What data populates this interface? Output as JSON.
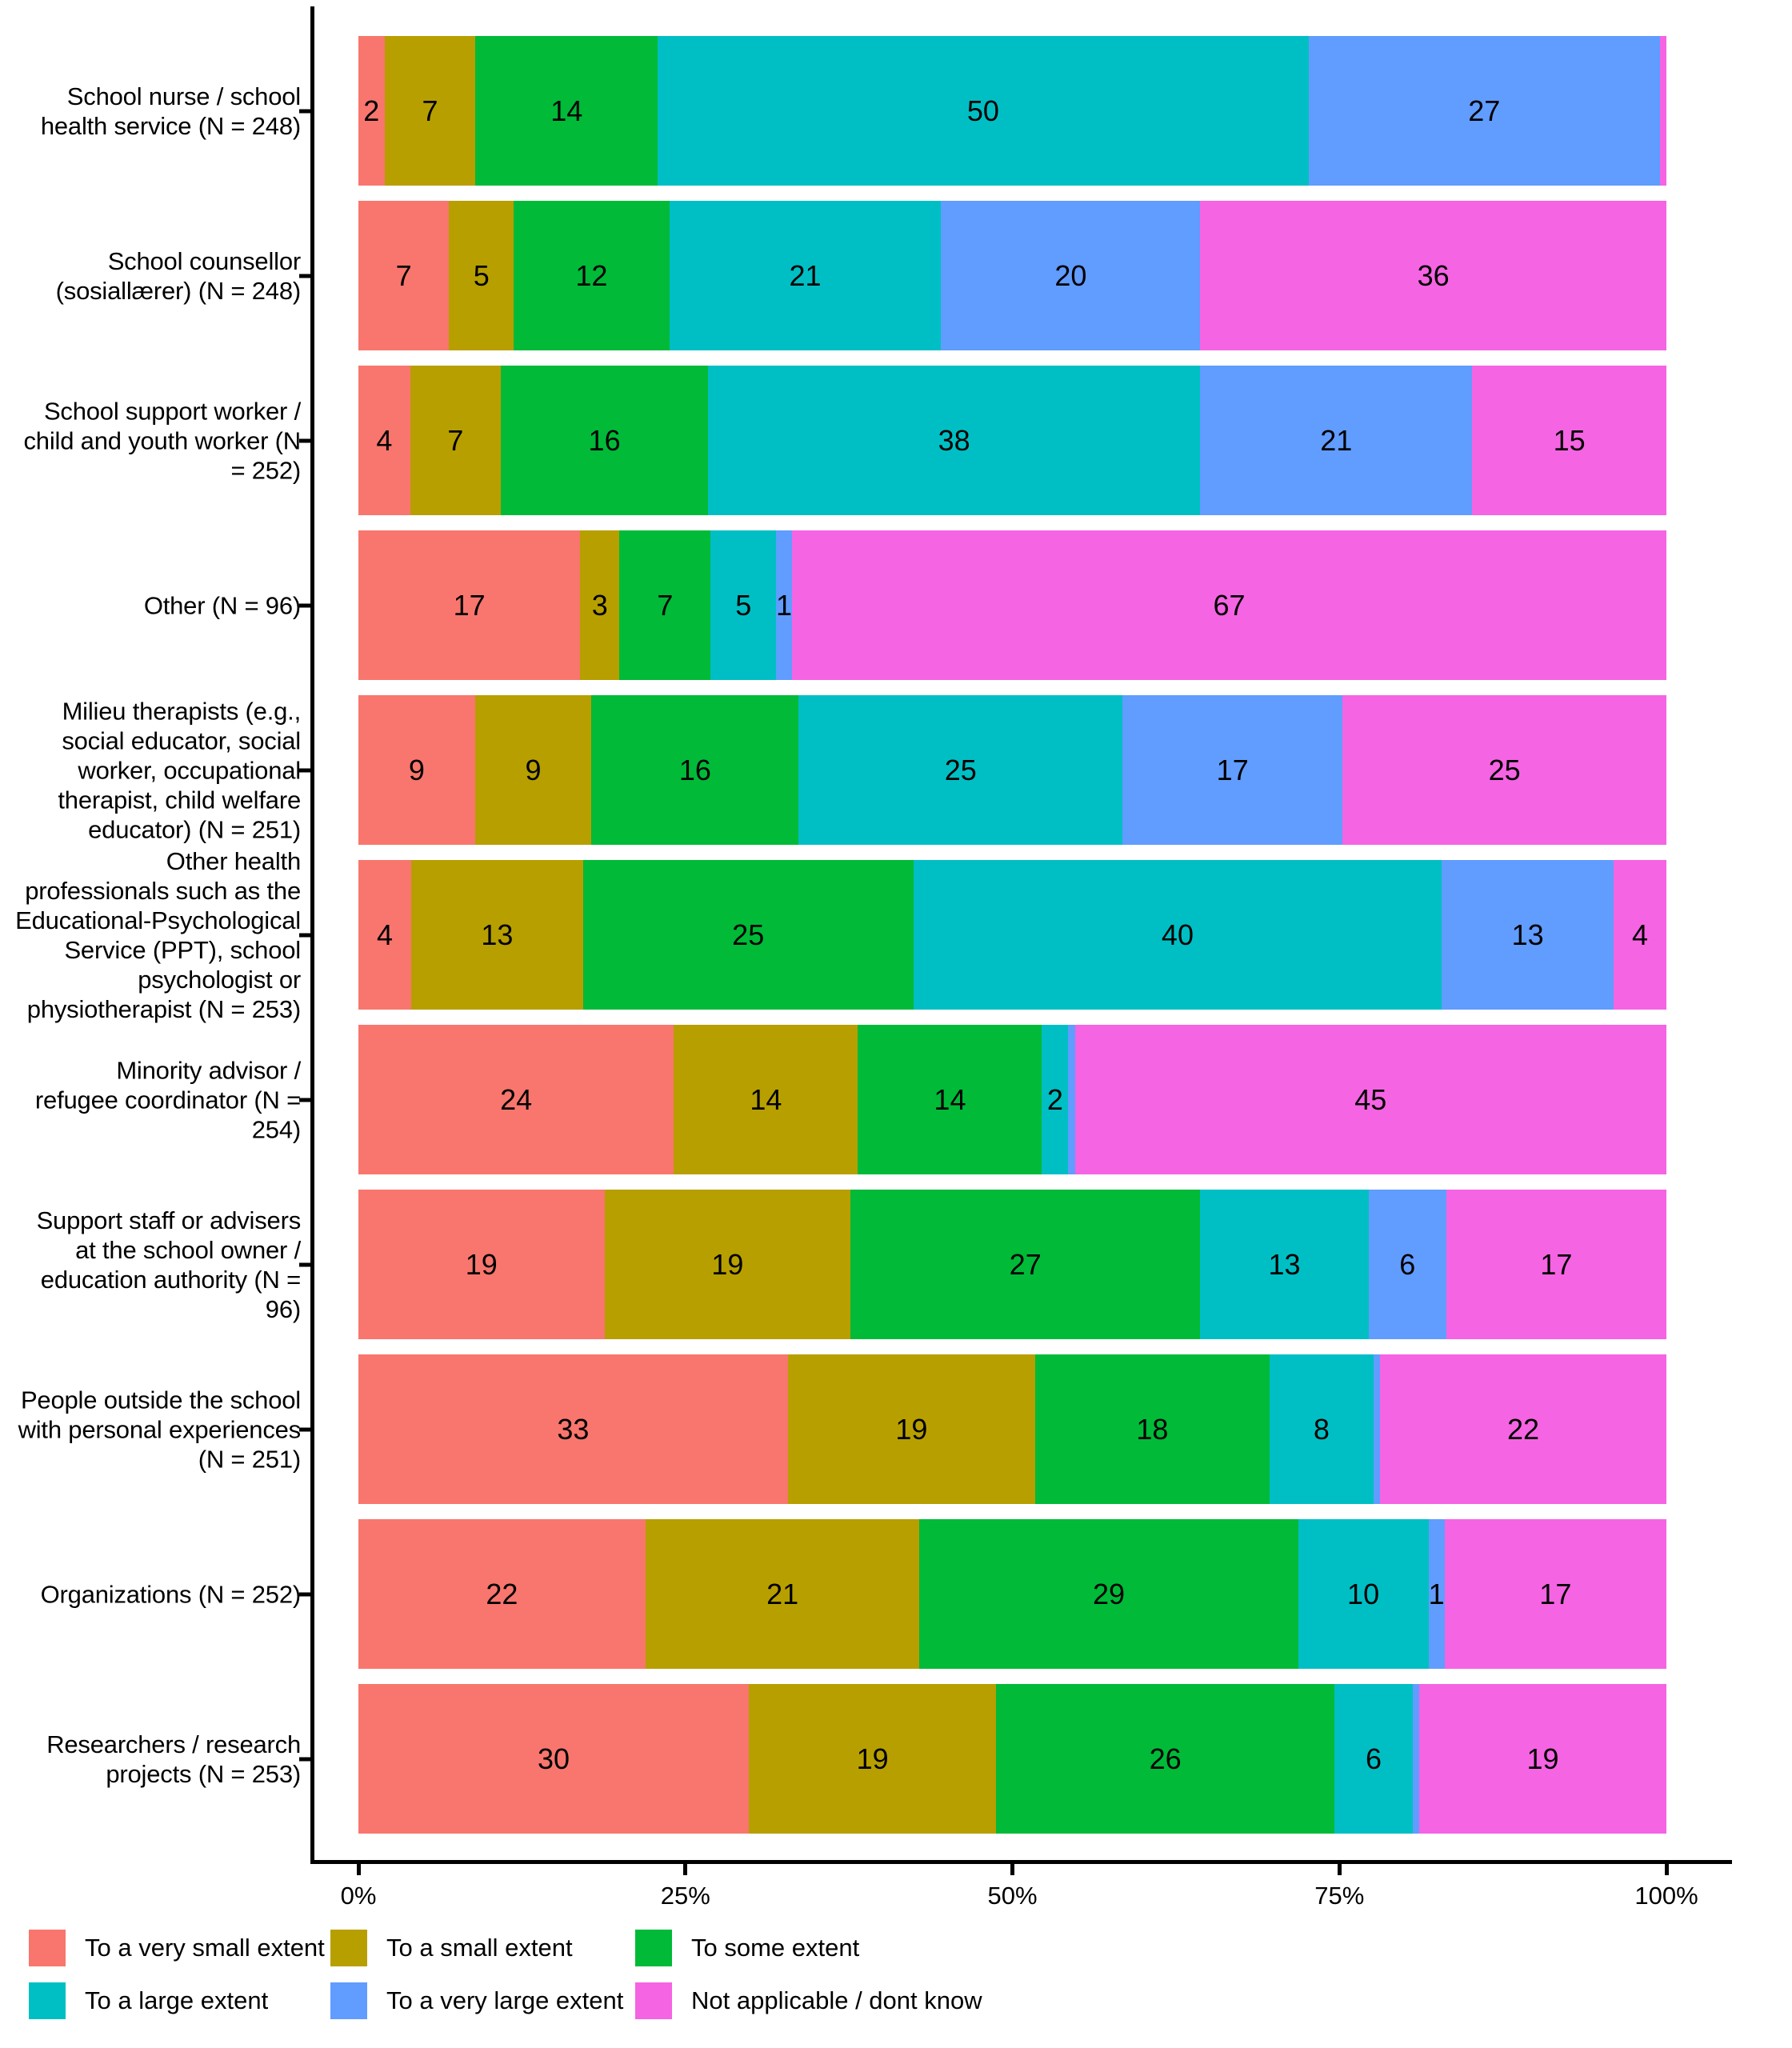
{
  "chart_data": {
    "type": "bar",
    "orientation": "horizontal",
    "stacked": true,
    "units": "percent of responses",
    "title": "",
    "xlabel": "",
    "ylabel": "",
    "xlim": [
      0,
      100
    ],
    "grid": false,
    "x_axis": {
      "ticks": [
        {
          "value": 0,
          "label": "0%"
        },
        {
          "value": 25,
          "label": "25%"
        },
        {
          "value": 50,
          "label": "50%"
        },
        {
          "value": 75,
          "label": "75%"
        },
        {
          "value": 100,
          "label": "100%"
        }
      ]
    },
    "legend": {
      "position": "bottom-left",
      "items": [
        {
          "label": "To a very small extent",
          "color": "#F8766D"
        },
        {
          "label": "To a small extent",
          "color": "#B79F00"
        },
        {
          "label": "To some extent",
          "color": "#00BA38"
        },
        {
          "label": "To a large extent",
          "color": "#00BFC4"
        },
        {
          "label": "To a very large extent",
          "color": "#619CFF"
        },
        {
          "label": "Not applicable / dont know",
          "color": "#F564E3"
        }
      ]
    },
    "rows": [
      {
        "category": "School nurse / school\nhealth service (N = 248)",
        "values": [
          2,
          7,
          14,
          50,
          27,
          0.5
        ],
        "value_labels": [
          "2",
          "7",
          "14",
          "50",
          "27",
          ""
        ]
      },
      {
        "category": "School counsellor\n(sosiallærer) (N = 248)",
        "values": [
          7,
          5,
          12,
          21,
          20,
          36
        ],
        "value_labels": [
          "7",
          "5",
          "12",
          "21",
          "20",
          "36"
        ]
      },
      {
        "category": "School support worker /\nchild and youth worker (N\n= 252)",
        "values": [
          4,
          7,
          16,
          38,
          21,
          15
        ],
        "value_labels": [
          "4",
          "7",
          "16",
          "38",
          "21",
          "15"
        ]
      },
      {
        "category": "Other (N = 96)",
        "values": [
          17,
          3,
          7,
          5,
          1,
          67
        ],
        "value_labels": [
          "17",
          "3",
          "7",
          "5",
          "1",
          "67"
        ]
      },
      {
        "category": "Milieu therapists (e.g.,\nsocial educator, social\nworker, occupational\ntherapist, child welfare\neducator) (N = 251)",
        "values": [
          9,
          9,
          16,
          25,
          17,
          25
        ],
        "value_labels": [
          "9",
          "9",
          "16",
          "25",
          "17",
          "25"
        ]
      },
      {
        "category": "Other health\nprofessionals such as the\nEducational-Psychological\nService (PPT), school\npsychologist or\nphysiotherapist (N = 253)",
        "values": [
          4,
          13,
          25,
          40,
          13,
          4
        ],
        "value_labels": [
          "4",
          "13",
          "25",
          "40",
          "13",
          "4"
        ]
      },
      {
        "category": "Minority advisor /\nrefugee coordinator (N =\n254)",
        "values": [
          24,
          14,
          14,
          2,
          0.5,
          45
        ],
        "value_labels": [
          "24",
          "14",
          "14",
          "2",
          "",
          "45"
        ]
      },
      {
        "category": "Support staff or advisers\nat the school owner /\neducation authority (N =\n96)",
        "values": [
          19,
          19,
          27,
          13,
          6,
          17
        ],
        "value_labels": [
          "19",
          "19",
          "27",
          "13",
          "6",
          "17"
        ]
      },
      {
        "category": "People outside the school\nwith personal experiences\n(N = 251)",
        "values": [
          33,
          19,
          18,
          8,
          0.5,
          22
        ],
        "value_labels": [
          "33",
          "19",
          "18",
          "8",
          "",
          "22"
        ]
      },
      {
        "category": "Organizations (N = 252)",
        "values": [
          22,
          21,
          29,
          10,
          1,
          17
        ],
        "value_labels": [
          "22",
          "21",
          "29",
          "10",
          "1",
          "17"
        ]
      },
      {
        "category": "Researchers / research\nprojects (N = 253)",
        "values": [
          30,
          19,
          26,
          6,
          0.5,
          19
        ],
        "value_labels": [
          "30",
          "19",
          "26",
          "6",
          "",
          "19"
        ]
      }
    ],
    "colors": {
      "axis": "#000000",
      "text": "#000000",
      "background": "#FFFFFF"
    }
  }
}
